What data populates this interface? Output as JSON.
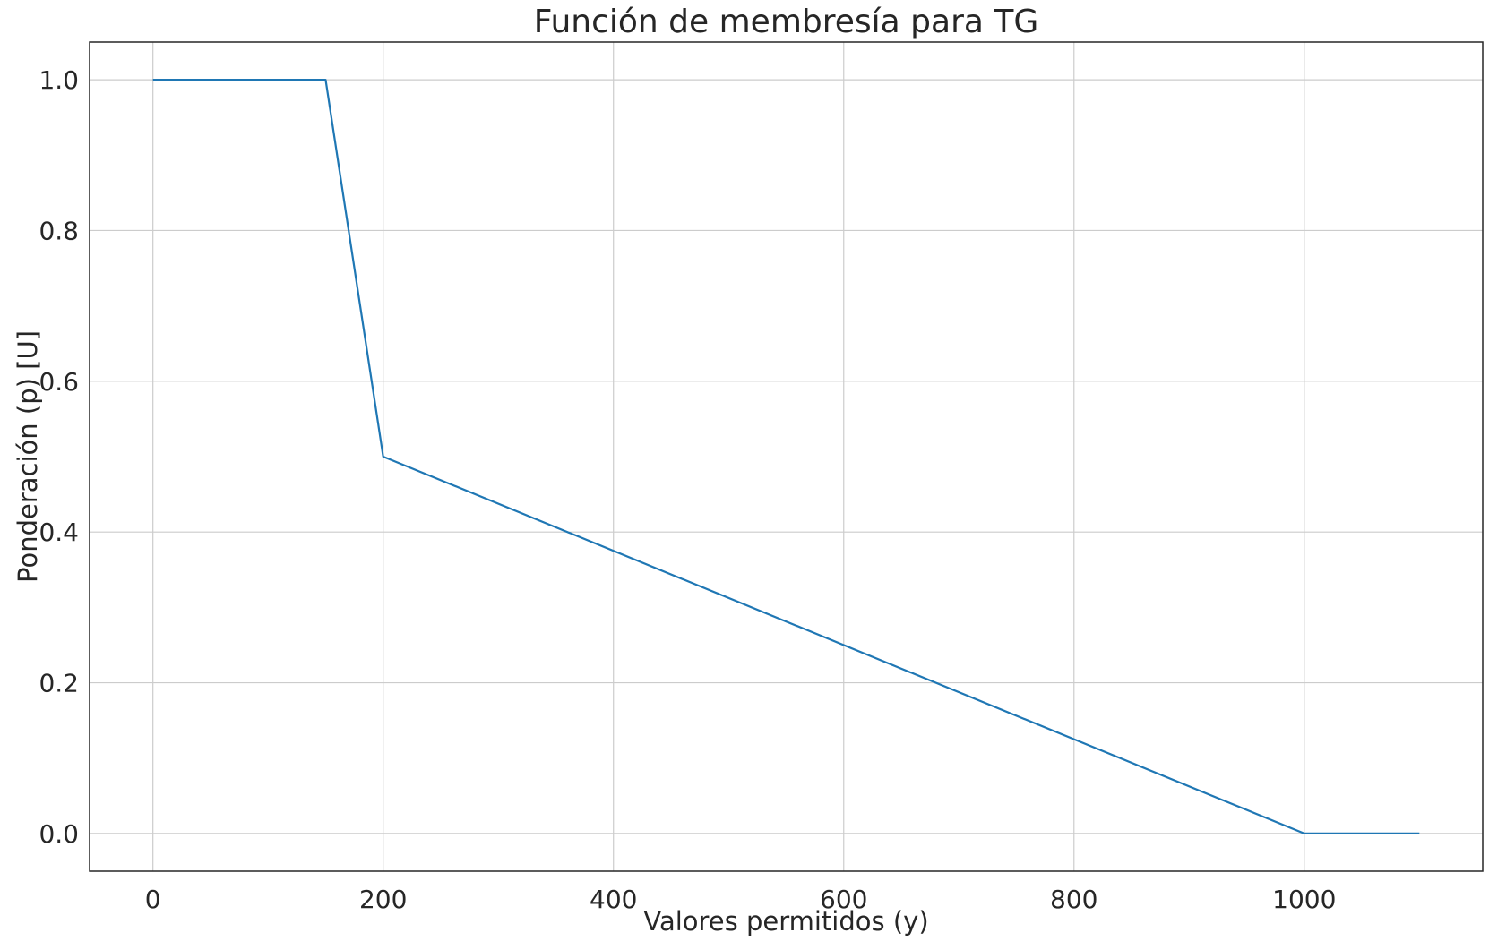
{
  "chart_data": {
    "type": "line",
    "title": "Función de membresía para TG",
    "xlabel": "Valores permitidos (y)",
    "ylabel": "Ponderación (p) [U]",
    "xlim": [
      -55,
      1155
    ],
    "ylim": [
      -0.05,
      1.05
    ],
    "xticks": [
      0,
      200,
      400,
      600,
      800,
      1000
    ],
    "xtick_labels": [
      "0",
      "200",
      "400",
      "600",
      "800",
      "1000"
    ],
    "yticks": [
      0.0,
      0.2,
      0.4,
      0.6,
      0.8,
      1.0
    ],
    "ytick_labels": [
      "0.0",
      "0.2",
      "0.4",
      "0.6",
      "0.8",
      "1.0"
    ],
    "grid": true,
    "series": [
      {
        "color": "#1f77b4",
        "x": [
          0,
          150,
          200,
          1000,
          1100
        ],
        "y": [
          1.0,
          1.0,
          0.5,
          0.0,
          0.0
        ]
      }
    ]
  }
}
